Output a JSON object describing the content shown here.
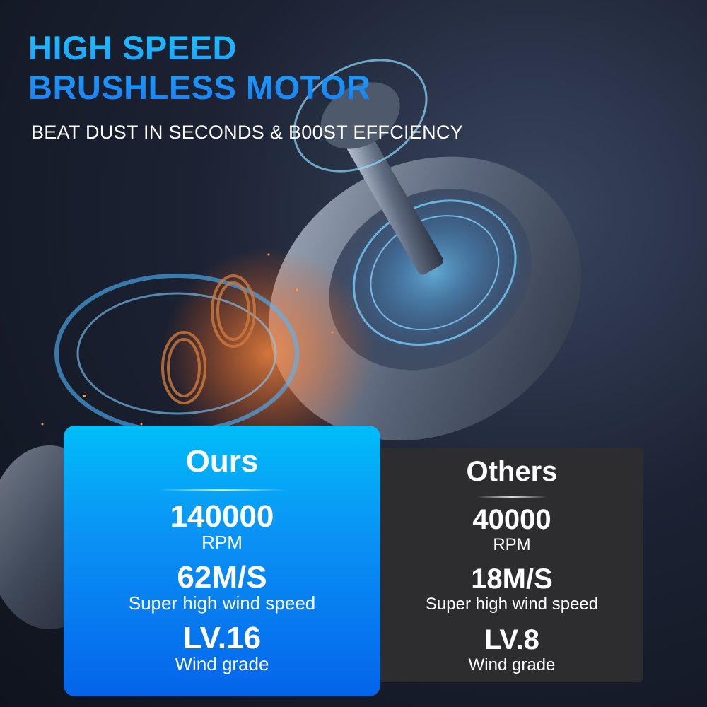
{
  "header": {
    "title_line1": "HIGH SPEED",
    "title_line2": "BRUSHLESS MOTOR",
    "subtitle": "BEAT DUST IN SECONDS & B00ST EFFCIENCY"
  },
  "colors": {
    "accent": "#1aa0ff",
    "ours_card_top": "#00bdf8",
    "ours_card_bottom": "#0464ea",
    "others_card": "#2d2d2f"
  },
  "comparison": {
    "ours": {
      "label": "Ours",
      "rpm_value": "140000",
      "rpm_unit": "RPM",
      "wind_speed_value": "62M/S",
      "wind_speed_label": "Super high wind speed",
      "wind_grade_value": "LV.16",
      "wind_grade_label": "Wind grade"
    },
    "others": {
      "label": "Others",
      "rpm_value": "40000",
      "rpm_unit": "RPM",
      "wind_speed_value": "18M/S",
      "wind_speed_label": "Super high wind speed",
      "wind_grade_value": "LV.8",
      "wind_grade_label": "Wind grade"
    }
  }
}
